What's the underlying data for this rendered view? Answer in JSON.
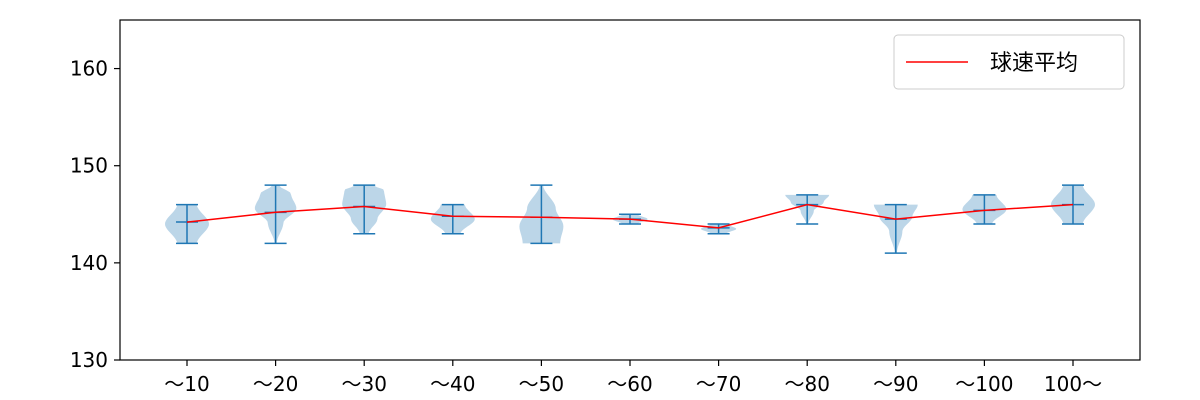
{
  "chart_data": {
    "type": "violin",
    "title": "",
    "xlabel": "",
    "ylabel": "",
    "categories": [
      "～10",
      "～20",
      "～30",
      "～40",
      "～50",
      "～60",
      "～70",
      "～80",
      "～90",
      "～100",
      "100～"
    ],
    "ylim": [
      130,
      165
    ],
    "yticks": [
      130,
      140,
      150,
      160
    ],
    "grid": false,
    "legend": {
      "position": "top-right",
      "entries": [
        {
          "label": "球速平均",
          "color": "#ff0000"
        }
      ]
    },
    "distributions": [
      {
        "category": "～10",
        "min": 142,
        "max": 146,
        "mean": 144.2,
        "widest_at": 144,
        "shape": "diamond"
      },
      {
        "category": "～20",
        "min": 142,
        "max": 148,
        "mean": 145.2,
        "widest_at": 146,
        "shape": "tapered-low"
      },
      {
        "category": "～30",
        "min": 143,
        "max": 148,
        "mean": 145.8,
        "widest_at": 146,
        "shape": "full-top"
      },
      {
        "category": "～40",
        "min": 143,
        "max": 146,
        "mean": 144.8,
        "widest_at": 145,
        "shape": "balanced"
      },
      {
        "category": "～50",
        "min": 142,
        "max": 148,
        "mean": 144.7,
        "widest_at": 144,
        "shape": "bottom-heavy"
      },
      {
        "category": "～60",
        "min": 144,
        "max": 145,
        "mean": 144.5,
        "widest_at": 144.5,
        "shape": "thin"
      },
      {
        "category": "～70",
        "min": 143,
        "max": 144,
        "mean": 143.6,
        "widest_at": 143.5,
        "shape": "thin"
      },
      {
        "category": "～80",
        "min": 144,
        "max": 147,
        "mean": 146,
        "widest_at": 146.8,
        "shape": "top-wide"
      },
      {
        "category": "～90",
        "min": 141,
        "max": 146,
        "mean": 144.5,
        "widest_at": 145.5,
        "shape": "top-wide"
      },
      {
        "category": "～100",
        "min": 144,
        "max": 147,
        "mean": 145.4,
        "widest_at": 145,
        "shape": "balanced"
      },
      {
        "category": "100～",
        "min": 144,
        "max": 148,
        "mean": 146,
        "widest_at": 146,
        "shape": "diamond"
      }
    ],
    "mean_line": {
      "label": "球速平均",
      "values": [
        144.2,
        145.2,
        145.8,
        144.8,
        144.7,
        144.5,
        143.6,
        146,
        144.5,
        145.4,
        146
      ]
    },
    "colors": {
      "violin_fill": "#a6c8e0",
      "violin_alpha": 0.75,
      "whisker": "#1f77b4",
      "mean_line": "#ff0000",
      "axis": "#000000"
    }
  }
}
